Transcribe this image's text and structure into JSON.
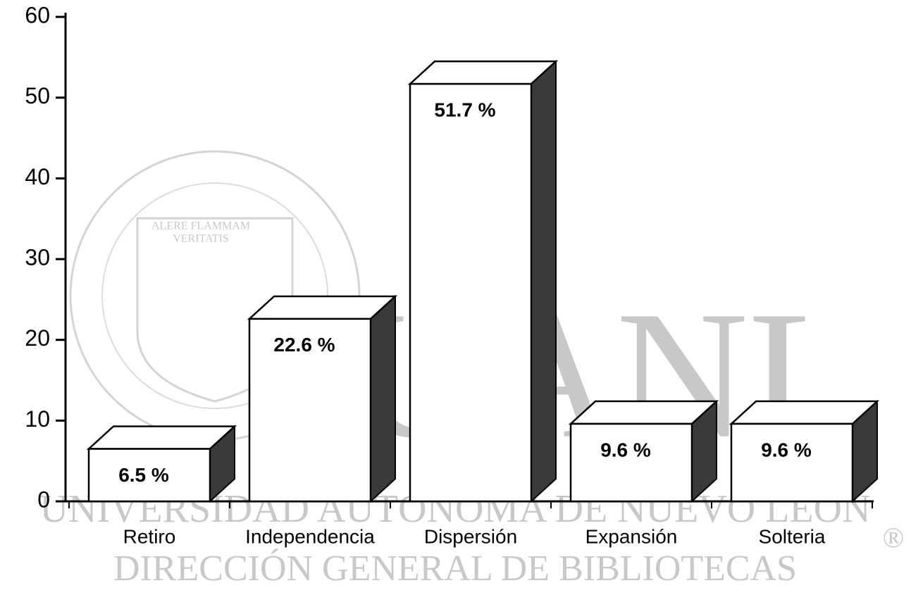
{
  "chart_data": {
    "type": "bar3d",
    "categories": [
      "Retiro",
      "Independencia",
      "Dispersión",
      "Expansión",
      "Solteria"
    ],
    "values": [
      6.5,
      22.6,
      51.7,
      9.6,
      9.6
    ],
    "value_labels": [
      "6.5 %",
      "22.6 %",
      "51.7 %",
      "9.6 %",
      "9.6 %"
    ],
    "color": "#ffffff",
    "side_color": "#3a3a3a",
    "ylim": [
      0,
      60
    ],
    "yticks": [
      0,
      10,
      20,
      30,
      40,
      50,
      60
    ],
    "grid": false,
    "watermark": [
      "UANL",
      "UNIVERSIDAD AUTÓNOMA DE NUEVO LEÓN",
      "DIRECCIÓN GENERAL DE BIBLIOTECAS",
      "ALERE FLAMMAM",
      "VERITATIS",
      "®"
    ]
  }
}
